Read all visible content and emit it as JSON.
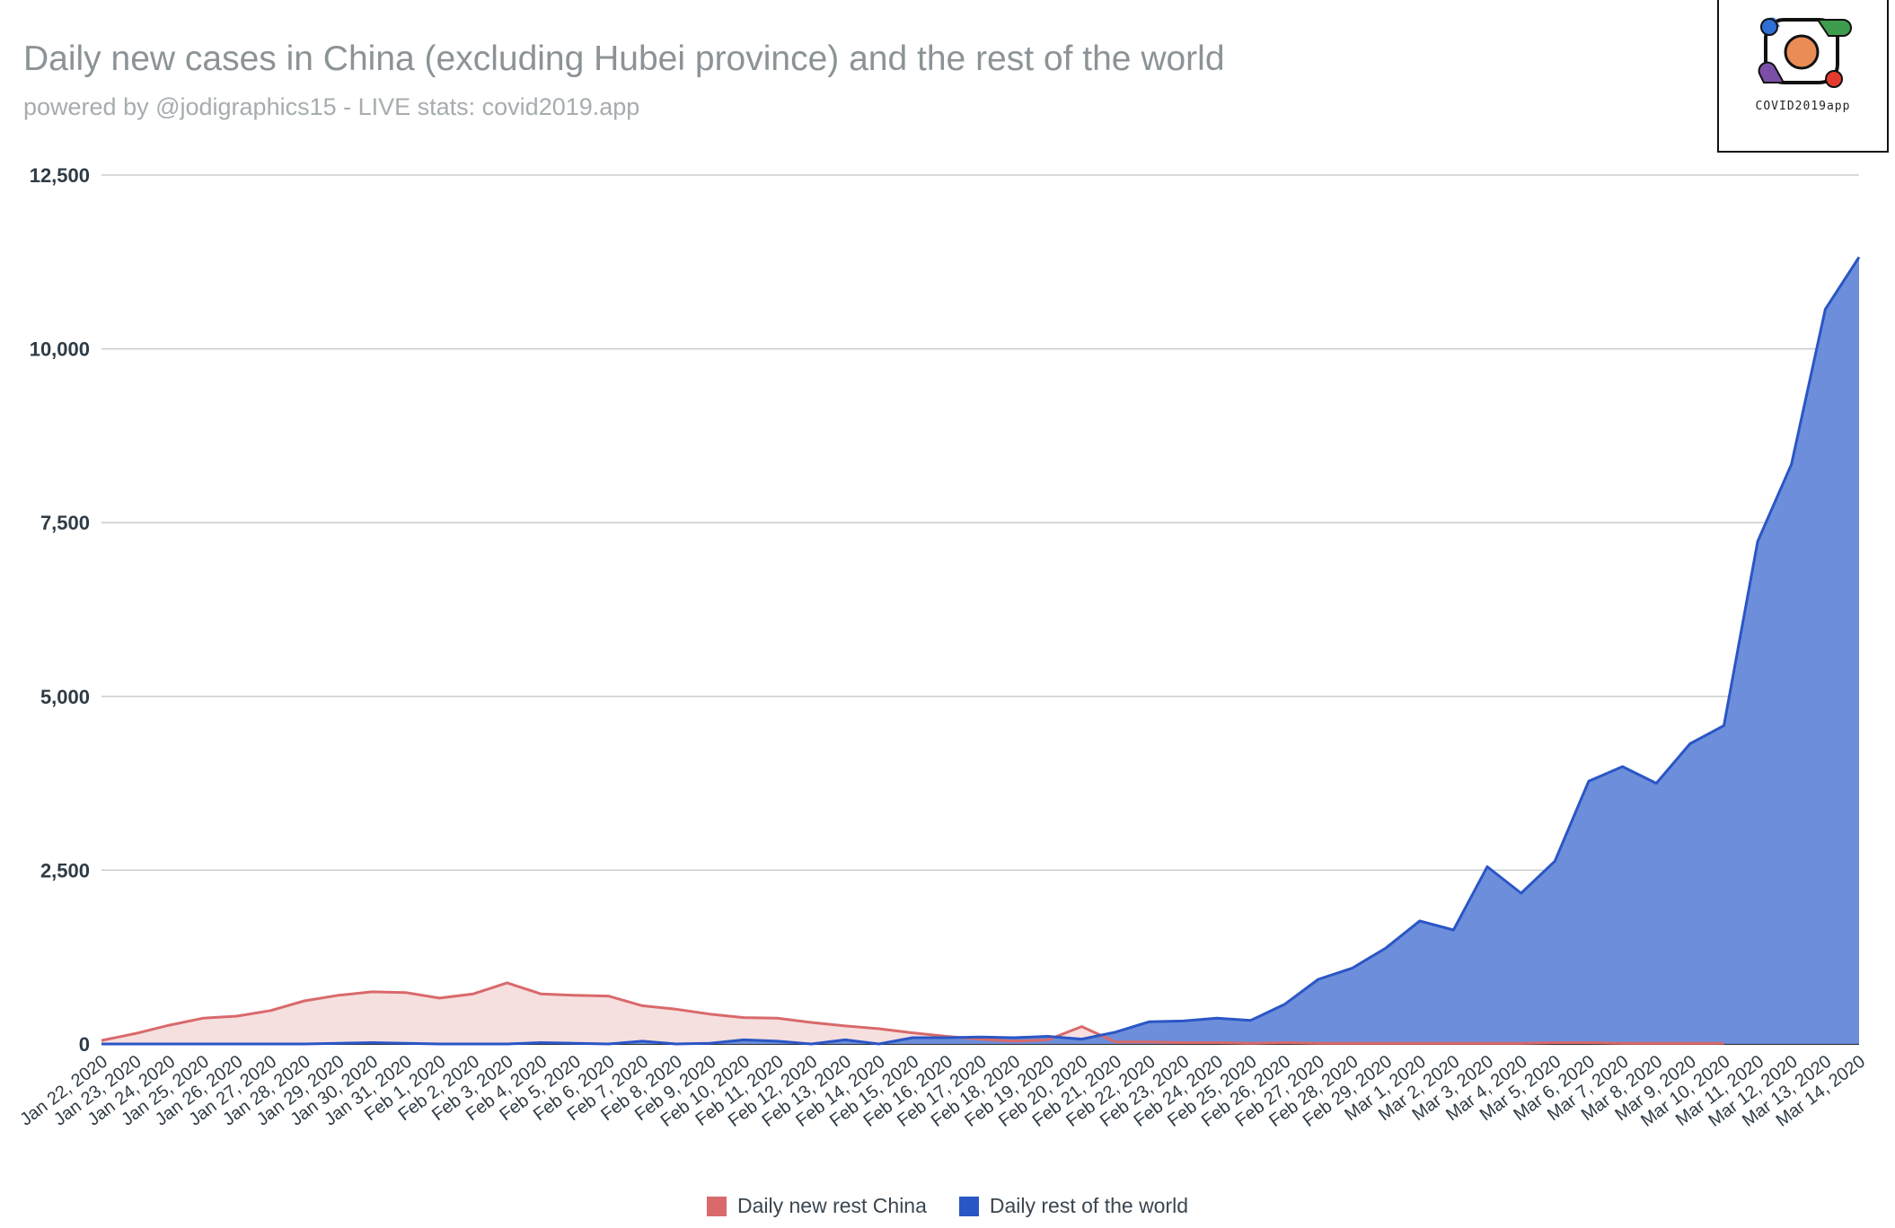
{
  "header": {
    "title": "Daily new cases in China (excluding Hubei province) and the rest of the world",
    "subtitle": "powered by @jodigraphics15 - LIVE stats: covid2019.app"
  },
  "logo": {
    "text": "COVID2019app",
    "icon": "covid2019app-logo-icon",
    "colors": {
      "blue": "#2f6fd6",
      "green": "#3e9c4f",
      "purple": "#7b4fa8",
      "red": "#e23b2e",
      "orange": "#ea8c55"
    }
  },
  "chart_data": {
    "type": "area",
    "title": "Daily new cases in China (excluding Hubei province) and the rest of the world",
    "subtitle": "powered by @jodigraphics15 - LIVE stats: covid2019.app",
    "xlabel": "",
    "ylabel": "",
    "ylim": [
      0,
      12500
    ],
    "yticks": [
      0,
      2500,
      5000,
      7500,
      10000,
      12500
    ],
    "ytick_labels": [
      "0",
      "2,500",
      "5,000",
      "7,500",
      "10,000",
      "12,500"
    ],
    "grid": true,
    "legend_position": "bottom",
    "categories": [
      "Jan 22, 2020",
      "Jan 23, 2020",
      "Jan 24, 2020",
      "Jan 25, 2020",
      "Jan 26, 2020",
      "Jan 27, 2020",
      "Jan 28, 2020",
      "Jan 29, 2020",
      "Jan 30, 2020",
      "Jan 31, 2020",
      "Feb 1, 2020",
      "Feb 2, 2020",
      "Feb 3, 2020",
      "Feb 4, 2020",
      "Feb 5, 2020",
      "Feb 6, 2020",
      "Feb 7, 2020",
      "Feb 8, 2020",
      "Feb 9, 2020",
      "Feb 10, 2020",
      "Feb 11, 2020",
      "Feb 12, 2020",
      "Feb 13, 2020",
      "Feb 14, 2020",
      "Feb 15, 2020",
      "Feb 16, 2020",
      "Feb 17, 2020",
      "Feb 18, 2020",
      "Feb 19, 2020",
      "Feb 20, 2020",
      "Feb 21, 2020",
      "Feb 22, 2020",
      "Feb 23, 2020",
      "Feb 24, 2020",
      "Feb 25, 2020",
      "Feb 26, 2020",
      "Feb 27, 2020",
      "Feb 28, 2020",
      "Feb 29, 2020",
      "Mar 1, 2020",
      "Mar 2, 2020",
      "Mar 3, 2020",
      "Mar 4, 2020",
      "Mar 5, 2020",
      "Mar 6, 2020",
      "Mar 7, 2020",
      "Mar 8, 2020",
      "Mar 9, 2020",
      "Mar 10, 2020",
      "Mar 11, 2020",
      "Mar 12, 2020",
      "Mar 13, 2020",
      "Mar 14, 2020"
    ],
    "series": [
      {
        "name": "Daily new rest China",
        "color": "#d9696b",
        "fill": "#f4d9d9",
        "values": [
          50,
          150,
          270,
          370,
          400,
          480,
          620,
          700,
          750,
          740,
          660,
          720,
          880,
          720,
          700,
          690,
          550,
          500,
          430,
          380,
          370,
          310,
          260,
          220,
          160,
          110,
          70,
          40,
          60,
          250,
          30,
          30,
          20,
          20,
          10,
          20,
          10,
          10,
          10,
          10,
          10,
          10,
          10,
          20,
          20,
          10,
          10,
          10,
          10,
          null,
          null,
          null,
          null
        ]
      },
      {
        "name": "Daily rest of the world",
        "color": "#2a56c6",
        "fill": "#6588d8",
        "values": [
          0,
          0,
          0,
          0,
          0,
          0,
          0,
          10,
          20,
          10,
          0,
          0,
          0,
          20,
          10,
          0,
          40,
          0,
          10,
          60,
          40,
          0,
          60,
          0,
          90,
          90,
          100,
          90,
          110,
          70,
          170,
          320,
          330,
          370,
          340,
          570,
          930,
          1090,
          1380,
          1770,
          1640,
          2550,
          2170,
          2630,
          3780,
          3990,
          3750,
          4320,
          4580,
          7230,
          8340,
          10570,
          11320
        ]
      }
    ]
  }
}
